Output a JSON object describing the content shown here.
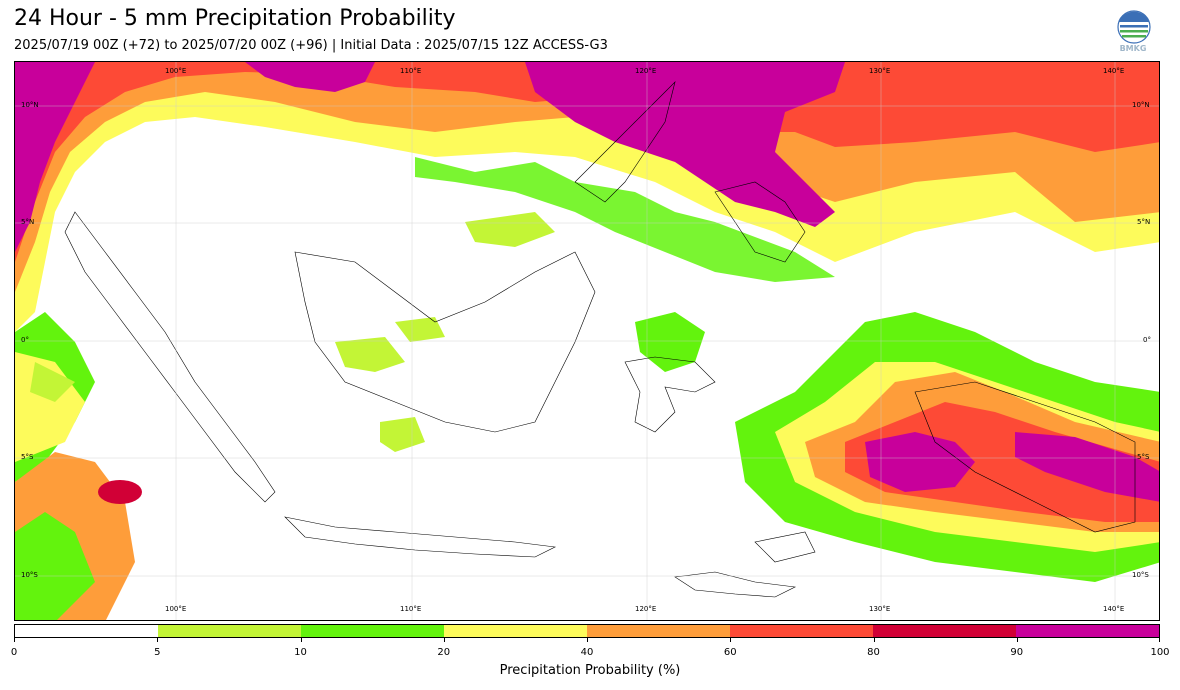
{
  "header": {
    "title": "24 Hour - 5 mm Precipitation Probability",
    "subtitle": "2025/07/19 00Z (+72) to 2025/07/20 00Z (+96) | Initial Data : 2025/07/15 12Z ACCESS-G3",
    "logo_text": "BMKG"
  },
  "map": {
    "lon_labels": [
      "100°E",
      "110°E",
      "120°E",
      "130°E",
      "140°E"
    ],
    "lat_labels": [
      "10°N",
      "5°N",
      "0°",
      "5°S",
      "10°S"
    ]
  },
  "colorbar": {
    "label": "Precipitation Probability (%)",
    "ticks": [
      "0",
      "5",
      "10",
      "20",
      "40",
      "60",
      "80",
      "90",
      "100"
    ],
    "colors": [
      "#ffffff",
      "#c3f536",
      "#63f30d",
      "#fdfb5b",
      "#fe9d3a",
      "#fd4a36",
      "#d10036",
      "#c8009b"
    ]
  }
}
